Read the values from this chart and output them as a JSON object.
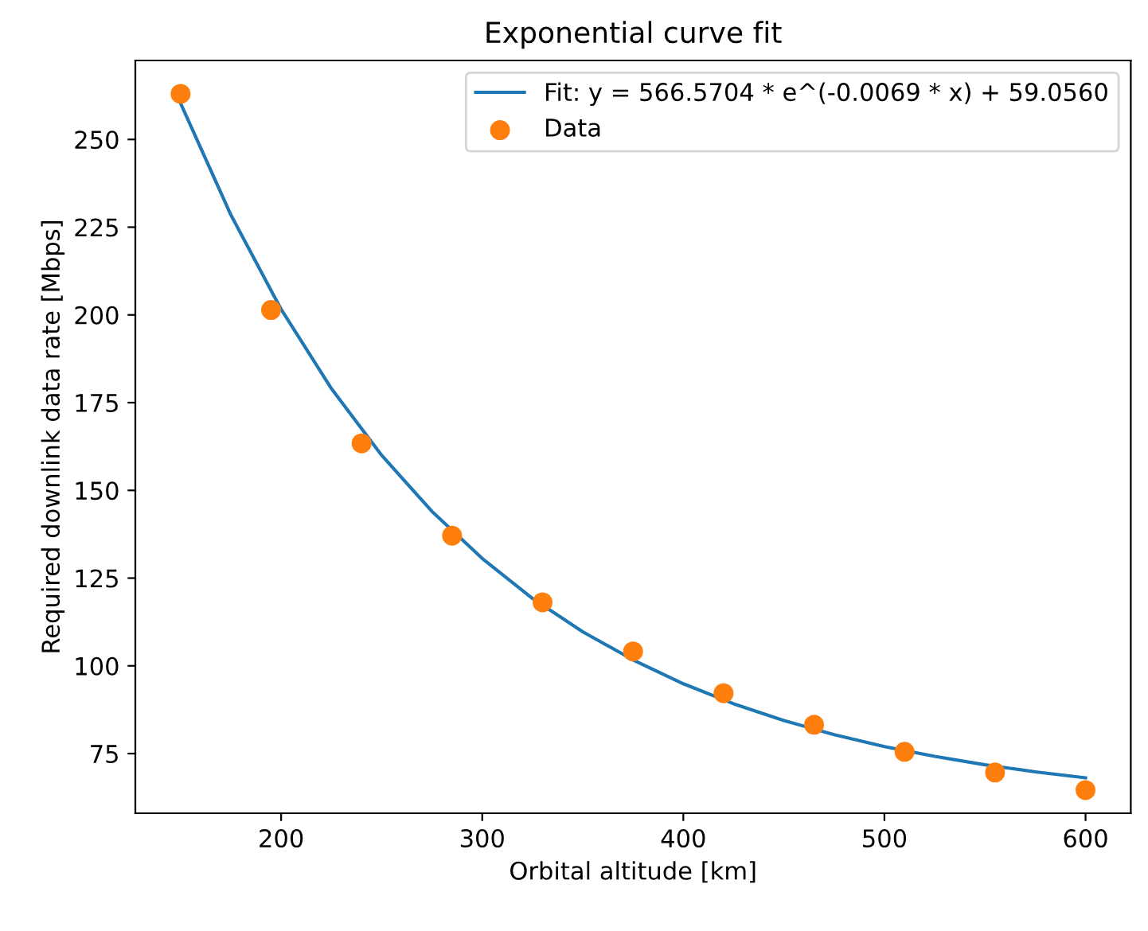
{
  "chart_data": {
    "type": "scatter",
    "title": "Exponential curve fit",
    "xlabel": "Orbital altitude [km]",
    "ylabel": "Required downlink data rate [Mbps]",
    "series": [
      {
        "name": "Fit: y = 566.5704 * e^(-0.0069 * x) + 59.0560",
        "type": "line",
        "color": "#1f77b4",
        "marker": "none",
        "line_style": "solid",
        "x": [
          150,
          175,
          200,
          225,
          250,
          275,
          300,
          325,
          350,
          375,
          400,
          425,
          450,
          475,
          500,
          525,
          550,
          575,
          600
        ],
        "values": [
          260.3,
          228.5,
          201.6,
          179.0,
          160.0,
          144.0,
          130.6,
          119.2,
          109.7,
          101.7,
          94.9,
          89.2,
          84.4,
          80.4,
          77.0,
          74.2,
          71.8,
          69.8,
          68.1
        ]
      },
      {
        "name": "Data",
        "color": "#ff7f0e",
        "marker": "circle",
        "x": [
          150,
          195,
          240,
          285,
          330,
          375,
          420,
          465,
          510,
          555,
          600
        ],
        "values": [
          263.0,
          201.4,
          163.4,
          137.1,
          118.1,
          104.1,
          92.2,
          83.2,
          75.5,
          69.6,
          64.6
        ]
      }
    ],
    "xlim": [
      127.5,
      622.5
    ],
    "ylim": [
      58,
      272.5
    ],
    "xticks": [
      200,
      300,
      400,
      500,
      600
    ],
    "yticks": [
      75,
      100,
      125,
      150,
      175,
      200,
      225,
      250
    ],
    "grid": false,
    "legend": "top right"
  }
}
